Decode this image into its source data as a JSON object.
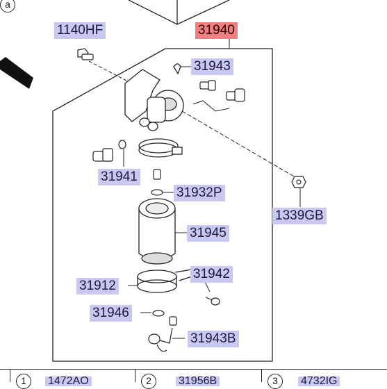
{
  "callout_top": "a",
  "labels": {
    "p1140HF": "1140HF",
    "p31940": "31940",
    "p31943": "31943",
    "p31941": "31941",
    "p31932P": "31932P",
    "p1339GB": "1339GB",
    "p31945": "31945",
    "p31942": "31942",
    "p31912": "31912",
    "p31946": "31946",
    "p31943B": "31943B"
  },
  "bottom": {
    "c1": "1",
    "t1": "1472AO",
    "c2": "2",
    "t2": "31956B",
    "c3": "3",
    "t3": "4732IG"
  },
  "colors": {
    "label_bg": "#c8c8f2",
    "highlight_bg": "#f08080",
    "line": "#222222"
  }
}
